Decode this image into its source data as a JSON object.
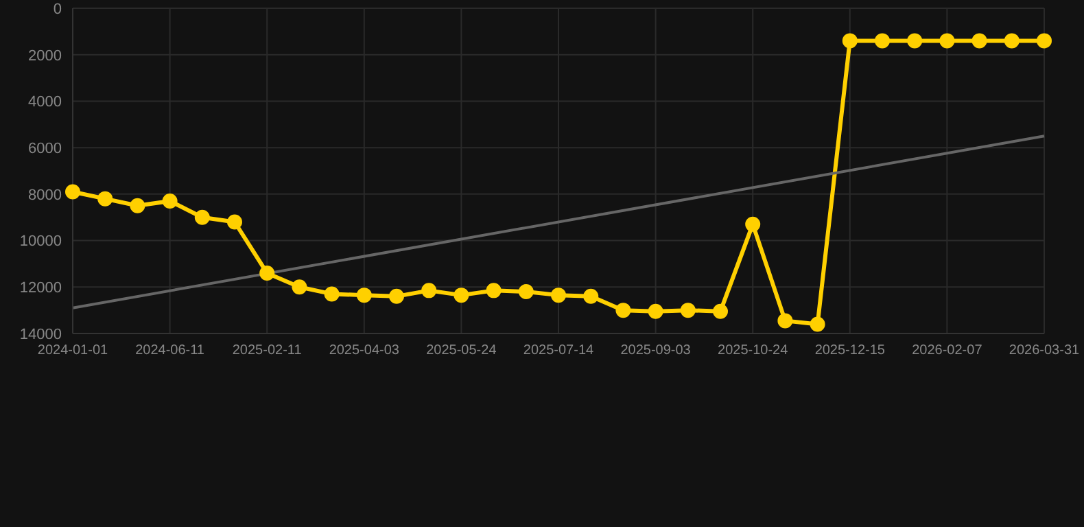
{
  "chart_data": {
    "type": "line",
    "categories": [
      "2024-01-01",
      null,
      null,
      "2024-06-11",
      null,
      null,
      "2025-02-11",
      null,
      null,
      "2025-04-03",
      null,
      null,
      "2025-05-24",
      null,
      null,
      "2025-07-14",
      null,
      null,
      "2025-09-03",
      null,
      null,
      "2025-10-24",
      null,
      null,
      "2025-12-15",
      null,
      null,
      "2026-02-07",
      null,
      null,
      "2026-03-31"
    ],
    "series": [
      {
        "color": "#ffd000",
        "values": [
          7900,
          8200,
          8500,
          8300,
          9000,
          9200,
          11400,
          12000,
          12300,
          12350,
          12400,
          12150,
          12350,
          12150,
          12200,
          12350,
          12400,
          13000,
          13050,
          13000,
          13050,
          9300,
          13450,
          13600,
          1400,
          1400,
          1400,
          1400,
          1400,
          1400,
          1400
        ]
      },
      {
        "type": "line",
        "color": "#666666",
        "marker": "none",
        "values": [
          12900,
          null,
          null,
          null,
          null,
          null,
          null,
          null,
          null,
          null,
          null,
          null,
          null,
          null,
          null,
          null,
          null,
          null,
          null,
          null,
          null,
          null,
          null,
          null,
          null,
          null,
          null,
          null,
          null,
          null,
          5500
        ]
      }
    ],
    "ylim": [
      14000,
      0
    ],
    "yticks": [
      0,
      2000,
      4000,
      6000,
      8000,
      10000,
      12000,
      14000
    ],
    "grid": true,
    "legend": false,
    "marker": "circle",
    "line_style": "solid"
  }
}
